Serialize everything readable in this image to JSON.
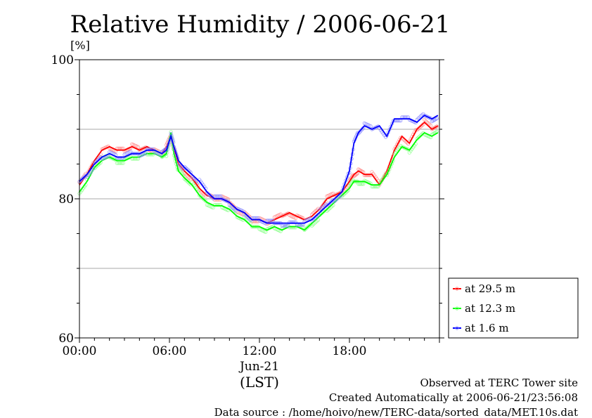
{
  "chart_data": {
    "type": "line",
    "title": "Relative Humidity / 2006-06-21",
    "ylabel": "[%]",
    "xlabel": "(LST)",
    "ylim": [
      60,
      100
    ],
    "yticks": [
      "60",
      "80",
      "100"
    ],
    "xticks": [
      "00:00",
      "06:00",
      "12:00",
      "18:00"
    ],
    "date_label": "Jun-21",
    "xlim_hours": [
      0,
      24
    ],
    "grid": true,
    "legend_position": "right",
    "series": [
      {
        "name": "at 29.5 m",
        "color": "#ff0000",
        "x": [
          0.0,
          0.5,
          1.0,
          1.5,
          2.0,
          2.5,
          3.0,
          3.5,
          4.0,
          4.5,
          5.0,
          5.5,
          5.8,
          6.1,
          6.3,
          6.6,
          7.0,
          7.5,
          8.0,
          8.5,
          9.0,
          9.5,
          10.0,
          10.5,
          11.0,
          11.5,
          12.0,
          12.5,
          13.0,
          13.5,
          14.0,
          14.5,
          15.0,
          15.5,
          16.0,
          16.5,
          17.0,
          17.5,
          18.0,
          18.3,
          18.6,
          19.0,
          19.5,
          20.0,
          20.5,
          21.0,
          21.5,
          22.0,
          22.5,
          23.0,
          23.5,
          23.9
        ],
        "y": [
          82.0,
          83.5,
          85.5,
          87.0,
          87.5,
          87.0,
          87.0,
          87.5,
          87.0,
          87.5,
          87.0,
          86.5,
          87.5,
          89.0,
          87.0,
          85.0,
          84.0,
          83.0,
          81.5,
          80.5,
          80.0,
          80.0,
          79.5,
          78.5,
          78.0,
          77.0,
          77.0,
          76.5,
          77.0,
          77.5,
          78.0,
          77.5,
          77.0,
          77.5,
          78.5,
          80.0,
          80.5,
          81.0,
          82.5,
          83.5,
          84.0,
          83.5,
          83.5,
          82.0,
          84.0,
          87.0,
          89.0,
          88.0,
          90.0,
          91.0,
          90.0,
          90.5
        ]
      },
      {
        "name": "at 12.3 m",
        "color": "#00ff00",
        "x": [
          0.0,
          0.5,
          1.0,
          1.5,
          2.0,
          2.5,
          3.0,
          3.5,
          4.0,
          4.5,
          5.0,
          5.5,
          5.8,
          6.1,
          6.3,
          6.6,
          7.0,
          7.5,
          8.0,
          8.5,
          9.0,
          9.5,
          10.0,
          10.5,
          11.0,
          11.5,
          12.0,
          12.5,
          13.0,
          13.5,
          14.0,
          14.5,
          15.0,
          15.5,
          16.0,
          16.5,
          17.0,
          17.5,
          18.0,
          18.3,
          18.6,
          19.0,
          19.5,
          20.0,
          20.5,
          21.0,
          21.5,
          22.0,
          22.5,
          23.0,
          23.5,
          23.9
        ],
        "y": [
          81.0,
          82.5,
          84.5,
          85.5,
          86.0,
          85.5,
          85.5,
          86.0,
          86.0,
          86.5,
          86.5,
          86.0,
          86.5,
          89.5,
          86.5,
          84.0,
          83.0,
          82.0,
          80.5,
          79.5,
          79.0,
          79.0,
          78.5,
          77.5,
          77.0,
          76.0,
          76.0,
          75.5,
          76.0,
          75.5,
          76.0,
          76.0,
          75.5,
          76.5,
          77.5,
          78.5,
          79.5,
          80.5,
          81.5,
          82.5,
          82.5,
          82.5,
          82.0,
          82.0,
          83.5,
          86.0,
          87.5,
          87.0,
          88.5,
          89.5,
          89.0,
          89.5
        ]
      },
      {
        "name": "at 1.6 m",
        "color": "#0000ff",
        "x": [
          0.0,
          0.5,
          1.0,
          1.5,
          2.0,
          2.5,
          3.0,
          3.5,
          4.0,
          4.5,
          5.0,
          5.5,
          5.8,
          6.1,
          6.3,
          6.6,
          7.0,
          7.5,
          8.0,
          8.5,
          9.0,
          9.5,
          10.0,
          10.5,
          11.0,
          11.5,
          12.0,
          12.5,
          13.0,
          13.5,
          14.0,
          14.5,
          15.0,
          15.5,
          16.0,
          16.5,
          17.0,
          17.5,
          18.0,
          18.3,
          18.6,
          19.0,
          19.5,
          20.0,
          20.5,
          21.0,
          21.5,
          22.0,
          22.5,
          23.0,
          23.5,
          23.9
        ],
        "y": [
          82.5,
          83.5,
          85.0,
          86.0,
          86.5,
          86.0,
          86.0,
          86.5,
          86.5,
          87.0,
          87.0,
          86.5,
          87.0,
          89.0,
          87.5,
          85.5,
          84.5,
          83.5,
          82.5,
          81.0,
          80.0,
          80.0,
          79.5,
          78.5,
          78.0,
          77.0,
          77.0,
          76.5,
          76.5,
          76.5,
          76.5,
          76.5,
          76.5,
          77.0,
          78.0,
          79.0,
          80.0,
          81.0,
          84.0,
          88.0,
          89.5,
          90.5,
          90.0,
          90.5,
          89.0,
          91.5,
          91.5,
          91.5,
          91.0,
          92.0,
          91.5,
          92.0
        ]
      }
    ]
  },
  "footer": {
    "line1": "Observed at TERC Tower site",
    "line2": "Created Automatically at 2006-06-21/23:56:08",
    "line3": "Data source : /home/hoivo/new/TERC-data/sorted_data/MET.10s.dat"
  }
}
